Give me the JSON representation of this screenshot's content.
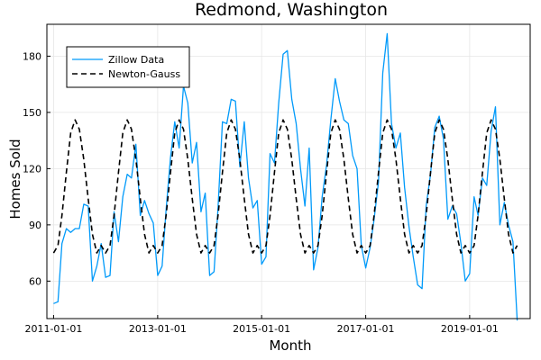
{
  "chart_data": {
    "type": "line",
    "title": "Redmond, Washington",
    "xlabel": "Month",
    "ylabel": "Homes Sold",
    "xlim": [
      "2010-11-15",
      "2020-03-01"
    ],
    "ylim": [
      40,
      197
    ],
    "x_ticks": [
      "2011-01-01",
      "2013-01-01",
      "2015-01-01",
      "2017-01-01",
      "2019-01-01"
    ],
    "y_ticks": [
      60,
      90,
      120,
      150,
      180
    ],
    "grid": true,
    "legend_position": "top-left",
    "series": [
      {
        "name": "Zillow Data",
        "color": "#009AFA",
        "style": "solid",
        "x": [
          "2011-01-01",
          "2011-02-01",
          "2011-03-01",
          "2011-04-01",
          "2011-05-01",
          "2011-06-01",
          "2011-07-01",
          "2011-08-01",
          "2011-09-01",
          "2011-10-01",
          "2011-11-01",
          "2011-12-01",
          "2012-01-01",
          "2012-02-01",
          "2012-03-01",
          "2012-04-01",
          "2012-05-01",
          "2012-06-01",
          "2012-07-01",
          "2012-08-01",
          "2012-09-01",
          "2012-10-01",
          "2012-11-01",
          "2012-12-01",
          "2013-01-01",
          "2013-02-01",
          "2013-03-01",
          "2013-04-01",
          "2013-05-01",
          "2013-06-01",
          "2013-07-01",
          "2013-08-01",
          "2013-09-01",
          "2013-10-01",
          "2013-11-01",
          "2013-12-01",
          "2014-01-01",
          "2014-02-01",
          "2014-03-01",
          "2014-04-01",
          "2014-05-01",
          "2014-06-01",
          "2014-07-01",
          "2014-08-01",
          "2014-09-01",
          "2014-10-01",
          "2014-11-01",
          "2014-12-01",
          "2015-01-01",
          "2015-02-01",
          "2015-03-01",
          "2015-04-01",
          "2015-05-01",
          "2015-06-01",
          "2015-07-01",
          "2015-08-01",
          "2015-09-01",
          "2015-10-01",
          "2015-11-01",
          "2015-12-01",
          "2016-01-01",
          "2016-02-01",
          "2016-03-01",
          "2016-04-01",
          "2016-05-01",
          "2016-06-01",
          "2016-07-01",
          "2016-08-01",
          "2016-09-01",
          "2016-10-01",
          "2016-11-01",
          "2016-12-01",
          "2017-01-01",
          "2017-02-01",
          "2017-03-01",
          "2017-04-01",
          "2017-05-01",
          "2017-06-01",
          "2017-07-01",
          "2017-08-01",
          "2017-09-01",
          "2017-10-01",
          "2017-11-01",
          "2017-12-01",
          "2018-01-01",
          "2018-02-01",
          "2018-03-01",
          "2018-04-01",
          "2018-05-01",
          "2018-06-01",
          "2018-07-01",
          "2018-08-01",
          "2018-09-01",
          "2018-10-01",
          "2018-11-01",
          "2018-12-01",
          "2019-01-01",
          "2019-02-01",
          "2019-03-01",
          "2019-04-01",
          "2019-05-01",
          "2019-06-01",
          "2019-07-01",
          "2019-08-01",
          "2019-09-01",
          "2019-10-01",
          "2019-11-01",
          "2019-12-01"
        ],
        "values": [
          48,
          49,
          80,
          88,
          86,
          88,
          88,
          101,
          100,
          60,
          68,
          80,
          62,
          63,
          97,
          81,
          105,
          117,
          115,
          133,
          95,
          103,
          96,
          91,
          63,
          68,
          98,
          126,
          145,
          131,
          164,
          155,
          123,
          134,
          97,
          107,
          63,
          65,
          99,
          145,
          144,
          157,
          156,
          121,
          145,
          115,
          99,
          103,
          69,
          73,
          128,
          123,
          155,
          181,
          183,
          157,
          144,
          120,
          100,
          131,
          66,
          78,
          105,
          122,
          146,
          168,
          156,
          146,
          144,
          127,
          120,
          79,
          67,
          78,
          93,
          113,
          171,
          192,
          144,
          131,
          139,
          110,
          89,
          73,
          58,
          56,
          100,
          117,
          142,
          148,
          136,
          93,
          100,
          96,
          80,
          60,
          64,
          105,
          95,
          115,
          111,
          140,
          153,
          90,
          102,
          90,
          81,
          39
        ]
      },
      {
        "name": "Newton-Gauss",
        "color": "#000000",
        "style": "dashed",
        "x": [
          "2011-01-01",
          "2011-02-01",
          "2011-03-01",
          "2011-04-01",
          "2011-05-01",
          "2011-06-01",
          "2011-07-01",
          "2011-08-01",
          "2011-09-01",
          "2011-10-01",
          "2011-11-01",
          "2011-12-01",
          "2012-01-01",
          "2012-02-01",
          "2012-03-01",
          "2012-04-01",
          "2012-05-01",
          "2012-06-01",
          "2012-07-01",
          "2012-08-01",
          "2012-09-01",
          "2012-10-01",
          "2012-11-01",
          "2012-12-01",
          "2013-01-01",
          "2013-02-01",
          "2013-03-01",
          "2013-04-01",
          "2013-05-01",
          "2013-06-01",
          "2013-07-01",
          "2013-08-01",
          "2013-09-01",
          "2013-10-01",
          "2013-11-01",
          "2013-12-01",
          "2014-01-01",
          "2014-02-01",
          "2014-03-01",
          "2014-04-01",
          "2014-05-01",
          "2014-06-01",
          "2014-07-01",
          "2014-08-01",
          "2014-09-01",
          "2014-10-01",
          "2014-11-01",
          "2014-12-01",
          "2015-01-01",
          "2015-02-01",
          "2015-03-01",
          "2015-04-01",
          "2015-05-01",
          "2015-06-01",
          "2015-07-01",
          "2015-08-01",
          "2015-09-01",
          "2015-10-01",
          "2015-11-01",
          "2015-12-01",
          "2016-01-01",
          "2016-02-01",
          "2016-03-01",
          "2016-04-01",
          "2016-05-01",
          "2016-06-01",
          "2016-07-01",
          "2016-08-01",
          "2016-09-01",
          "2016-10-01",
          "2016-11-01",
          "2016-12-01",
          "2017-01-01",
          "2017-02-01",
          "2017-03-01",
          "2017-04-01",
          "2017-05-01",
          "2017-06-01",
          "2017-07-01",
          "2017-08-01",
          "2017-09-01",
          "2017-10-01",
          "2017-11-01",
          "2017-12-01",
          "2018-01-01",
          "2018-02-01",
          "2018-03-01",
          "2018-04-01",
          "2018-05-01",
          "2018-06-01",
          "2018-07-01",
          "2018-08-01",
          "2018-09-01",
          "2018-10-01",
          "2018-11-01",
          "2018-12-01",
          "2019-01-01",
          "2019-02-01",
          "2019-03-01",
          "2019-04-01",
          "2019-05-01",
          "2019-06-01",
          "2019-07-01",
          "2019-08-01",
          "2019-09-01",
          "2019-10-01",
          "2019-11-01",
          "2019-12-01"
        ],
        "values": [
          75,
          79,
          95,
          118,
          139,
          146,
          141,
          125,
          104,
          85,
          75,
          79,
          75,
          79,
          95,
          118,
          139,
          146,
          141,
          125,
          104,
          85,
          75,
          79,
          75,
          79,
          95,
          118,
          139,
          146,
          141,
          125,
          104,
          85,
          75,
          79,
          75,
          79,
          95,
          118,
          139,
          146,
          141,
          125,
          104,
          85,
          75,
          79,
          75,
          79,
          95,
          118,
          139,
          146,
          141,
          125,
          104,
          85,
          75,
          79,
          75,
          79,
          95,
          118,
          139,
          146,
          141,
          125,
          104,
          85,
          75,
          79,
          75,
          79,
          95,
          118,
          139,
          146,
          141,
          125,
          104,
          85,
          75,
          79,
          75,
          79,
          95,
          118,
          139,
          146,
          141,
          125,
          104,
          85,
          75,
          79,
          75,
          79,
          95,
          118,
          139,
          146,
          141,
          125,
          104,
          85,
          75,
          79
        ]
      }
    ]
  }
}
